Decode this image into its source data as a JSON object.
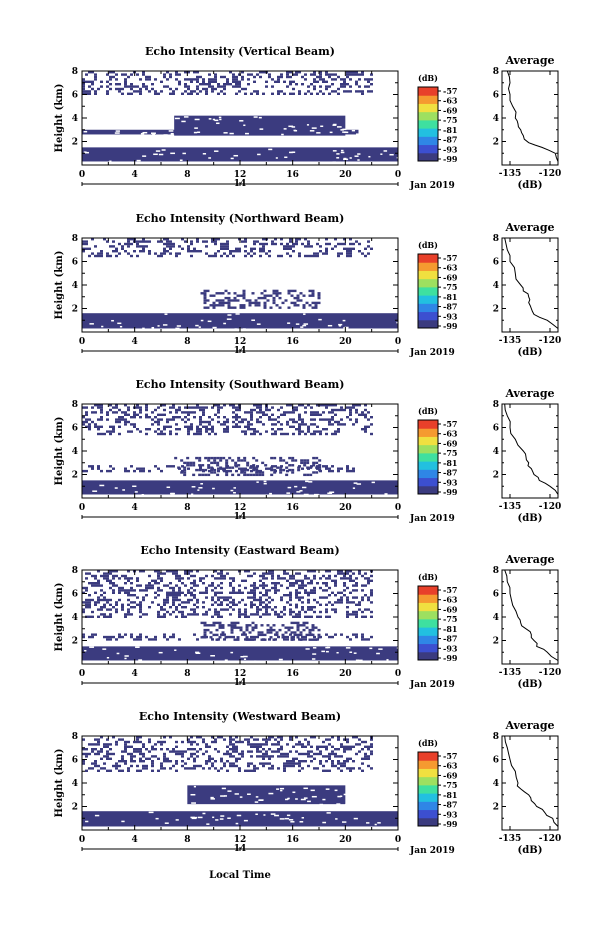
{
  "figure": {
    "xlabel": "Local Time",
    "date_label": "Jan 2019",
    "date_mid": "14",
    "cb_unit": "(dB)",
    "avg_title": "Average",
    "avg_xlabel": "(dB)"
  },
  "colormap": [
    "#3b3b7f",
    "#3c4fd0",
    "#2f86e6",
    "#22c0e0",
    "#3ee0a0",
    "#9de060",
    "#f0e040",
    "#f59a30",
    "#e8402a"
  ],
  "chart_data": [
    {
      "type": "heatmap",
      "title": "Echo Intensity (Vertical Beam)",
      "ylabel": "Height (km)",
      "xlim": [
        0,
        24
      ],
      "ylim": [
        0,
        8
      ],
      "x_ticks": [
        "0",
        "4",
        "8",
        "12",
        "16",
        "20",
        "0"
      ],
      "y_ticks": [
        "2",
        "4",
        "6",
        "8"
      ],
      "colorbar": {
        "label": "(dB)",
        "ticks": [
          "-57",
          "-63",
          "-69",
          "-75",
          "-81",
          "-87",
          "-93",
          "-99"
        ]
      },
      "echo_layers": [
        {
          "x": [
            0,
            24
          ],
          "y_bottom": 0.3,
          "y_top": 1.5
        },
        {
          "x": [
            0,
            21
          ],
          "y_bottom": 2.6,
          "y_top": 3.0
        },
        {
          "x": [
            7,
            20
          ],
          "y_bottom": 2.5,
          "y_top": 4.2
        },
        {
          "x": [
            0,
            22
          ],
          "y_bottom": 6.0,
          "y_top": 8.0,
          "sparse": true
        }
      ],
      "average": {
        "title": "Average",
        "xlabel": "(dB)",
        "x_ticks": [
          "-135",
          "-120"
        ],
        "y_ticks": [
          "2",
          "4",
          "6",
          "8"
        ],
        "xlim": [
          -138,
          -117
        ],
        "ylim": [
          0,
          8
        ],
        "height": [
          0.3,
          1.0,
          1.5,
          1.9,
          2.5,
          3.0,
          3.5,
          4.0,
          5.0,
          6.0,
          7.0,
          8.0
        ],
        "values": [
          -117,
          -118,
          -123,
          -128,
          -130,
          -131,
          -132,
          -133,
          -134,
          -135,
          -135,
          -136
        ]
      }
    },
    {
      "type": "heatmap",
      "title": "Echo Intensity (Northward Beam)",
      "ylabel": "Height (km)",
      "xlim": [
        0,
        24
      ],
      "ylim": [
        0,
        8
      ],
      "x_ticks": [
        "0",
        "4",
        "8",
        "12",
        "16",
        "20",
        "0"
      ],
      "y_ticks": [
        "2",
        "4",
        "6",
        "8"
      ],
      "colorbar": {
        "label": "(dB)",
        "ticks": [
          "-57",
          "-63",
          "-69",
          "-75",
          "-81",
          "-87",
          "-93",
          "-99"
        ]
      },
      "echo_layers": [
        {
          "x": [
            0,
            24
          ],
          "y_bottom": 0.3,
          "y_top": 1.6
        },
        {
          "x": [
            9,
            18
          ],
          "y_bottom": 2.0,
          "y_top": 3.6,
          "sparse": true
        },
        {
          "x": [
            0,
            22
          ],
          "y_bottom": 6.5,
          "y_top": 8.0,
          "sparse": true
        }
      ],
      "average": {
        "title": "Average",
        "xlabel": "(dB)",
        "x_ticks": [
          "-135",
          "-120"
        ],
        "y_ticks": [
          "2",
          "4",
          "6",
          "8"
        ],
        "xlim": [
          -138,
          -117
        ],
        "ylim": [
          0,
          8
        ],
        "height": [
          0.3,
          1.0,
          1.5,
          2.0,
          2.5,
          3.0,
          3.5,
          4.0,
          5.0,
          6.0,
          7.0,
          8.0
        ],
        "values": [
          -117,
          -121,
          -126,
          -127,
          -128,
          -128,
          -130,
          -131,
          -133,
          -135,
          -136,
          -137
        ]
      }
    },
    {
      "type": "heatmap",
      "title": "Echo Intensity (Southward Beam)",
      "ylabel": "Height (km)",
      "xlim": [
        0,
        24
      ],
      "ylim": [
        0,
        8
      ],
      "x_ticks": [
        "0",
        "4",
        "8",
        "12",
        "16",
        "20",
        "0"
      ],
      "y_ticks": [
        "2",
        "4",
        "6",
        "8"
      ],
      "colorbar": {
        "label": "(dB)",
        "ticks": [
          "-57",
          "-63",
          "-69",
          "-75",
          "-81",
          "-87",
          "-93",
          "-99"
        ]
      },
      "echo_layers": [
        {
          "x": [
            0,
            24
          ],
          "y_bottom": 0.3,
          "y_top": 1.5
        },
        {
          "x": [
            0,
            21
          ],
          "y_bottom": 2.2,
          "y_top": 2.8,
          "sparse": true
        },
        {
          "x": [
            7,
            18
          ],
          "y_bottom": 2.0,
          "y_top": 3.5,
          "sparse": true
        },
        {
          "x": [
            0,
            22
          ],
          "y_bottom": 5.5,
          "y_top": 8.0,
          "sparse": true
        }
      ],
      "average": {
        "title": "Average",
        "xlabel": "(dB)",
        "x_ticks": [
          "-135",
          "-120"
        ],
        "y_ticks": [
          "2",
          "4",
          "6",
          "8"
        ],
        "xlim": [
          -138,
          -117
        ],
        "ylim": [
          0,
          8
        ],
        "height": [
          0.3,
          1.0,
          1.5,
          2.0,
          2.5,
          3.0,
          3.5,
          4.0,
          5.0,
          6.0,
          7.0,
          8.0
        ],
        "values": [
          -117,
          -120,
          -124,
          -126,
          -127,
          -128,
          -129,
          -130,
          -133,
          -135,
          -136,
          -137
        ]
      }
    },
    {
      "type": "heatmap",
      "title": "Echo Intensity (Eastward Beam)",
      "ylabel": "Height (km)",
      "xlim": [
        0,
        24
      ],
      "ylim": [
        0,
        8
      ],
      "x_ticks": [
        "0",
        "4",
        "8",
        "12",
        "16",
        "20",
        "0"
      ],
      "y_ticks": [
        "2",
        "4",
        "6",
        "8"
      ],
      "colorbar": {
        "label": "(dB)",
        "ticks": [
          "-57",
          "-63",
          "-69",
          "-75",
          "-81",
          "-87",
          "-93",
          "-99"
        ]
      },
      "echo_layers": [
        {
          "x": [
            0,
            24
          ],
          "y_bottom": 0.3,
          "y_top": 1.5
        },
        {
          "x": [
            0,
            22
          ],
          "y_bottom": 2.0,
          "y_top": 2.6,
          "sparse": true
        },
        {
          "x": [
            9,
            18
          ],
          "y_bottom": 2.0,
          "y_top": 3.6,
          "sparse": true
        },
        {
          "x": [
            0,
            22
          ],
          "y_bottom": 4.0,
          "y_top": 8.0,
          "sparse": true
        }
      ],
      "average": {
        "title": "Average",
        "xlabel": "(dB)",
        "x_ticks": [
          "-135",
          "-120"
        ],
        "y_ticks": [
          "2",
          "4",
          "6",
          "8"
        ],
        "xlim": [
          -138,
          -117
        ],
        "ylim": [
          0,
          8
        ],
        "height": [
          0.3,
          1.0,
          1.5,
          2.0,
          2.5,
          3.0,
          3.5,
          4.0,
          5.0,
          6.0,
          7.0,
          8.0
        ],
        "values": [
          -117,
          -121,
          -125,
          -126,
          -127,
          -129,
          -131,
          -132,
          -134,
          -135,
          -136,
          -137
        ]
      }
    },
    {
      "type": "heatmap",
      "title": "Echo Intensity (Westward Beam)",
      "ylabel": "Height (km)",
      "xlim": [
        0,
        24
      ],
      "ylim": [
        0,
        8
      ],
      "x_ticks": [
        "0",
        "4",
        "8",
        "12",
        "16",
        "20",
        "0"
      ],
      "y_ticks": [
        "2",
        "4",
        "6",
        "8"
      ],
      "colorbar": {
        "label": "(dB)",
        "ticks": [
          "-57",
          "-63",
          "-69",
          "-75",
          "-81",
          "-87",
          "-93",
          "-99"
        ]
      },
      "echo_layers": [
        {
          "x": [
            0,
            24
          ],
          "y_bottom": 0.3,
          "y_top": 1.6
        },
        {
          "x": [
            8,
            20
          ],
          "y_bottom": 2.2,
          "y_top": 3.8
        },
        {
          "x": [
            0,
            22
          ],
          "y_bottom": 5.0,
          "y_top": 8.0,
          "sparse": true
        }
      ],
      "average": {
        "title": "Average",
        "xlabel": "(dB)",
        "x_ticks": [
          "-135",
          "-120"
        ],
        "y_ticks": [
          "2",
          "4",
          "6",
          "8"
        ],
        "xlim": [
          -138,
          -117
        ],
        "ylim": [
          0,
          8
        ],
        "height": [
          0.3,
          1.0,
          1.5,
          2.0,
          2.5,
          3.0,
          3.5,
          4.0,
          5.0,
          6.0,
          7.0,
          8.0
        ],
        "values": [
          -117,
          -119,
          -122,
          -125,
          -127,
          -128,
          -131,
          -132,
          -133,
          -135,
          -136,
          -137
        ]
      }
    }
  ]
}
